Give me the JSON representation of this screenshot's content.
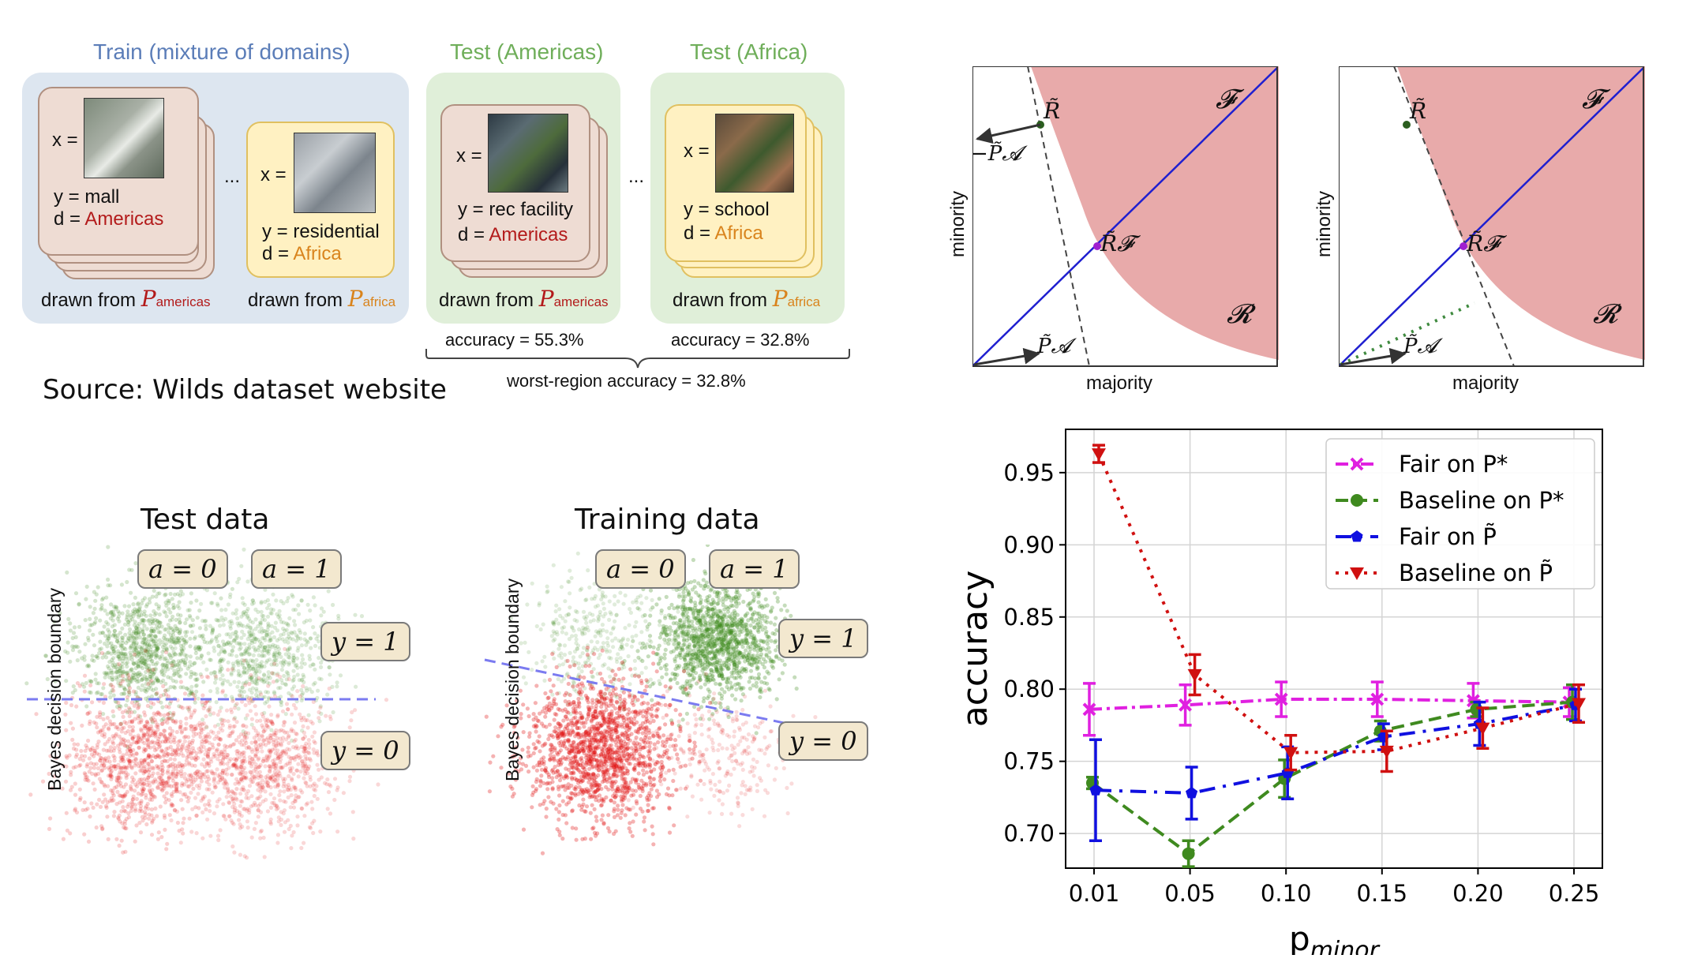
{
  "wilds": {
    "train_title": "Train (mixture of domains)",
    "test_am_title": "Test (Americas)",
    "test_af_title": "Test (Africa)",
    "x_eq": "x =",
    "ellipsis": "...",
    "mall": {
      "y": "y = mall",
      "d_prefix": "d =",
      "d_val": "Americas"
    },
    "residential": {
      "y": "y = residential",
      "d_prefix": "d =",
      "d_val": "Africa"
    },
    "rec": {
      "y": "y = rec facility",
      "d_prefix": "d =",
      "d_val": "Americas"
    },
    "school": {
      "y": "y = school",
      "d_prefix": "d =",
      "d_val": "Africa"
    },
    "drawn_from": "drawn from",
    "p_symbol": "P",
    "sub_americas": "americas",
    "sub_africa": "africa",
    "acc_am": "accuracy = 55.3%",
    "acc_af": "accuracy = 32.8%",
    "worst": "worst-region accuracy = 32.8%",
    "source": "Source: Wilds dataset website",
    "colors": {
      "train_bg": "#dde6f0",
      "test_bg": "#e0efd9",
      "title_blue": "#5b7db8",
      "title_green": "#6fae5a"
    }
  },
  "region_plots": {
    "xlabel": "majority",
    "ylabel": "minority",
    "R_tilde": "R̃",
    "F": "𝓕",
    "R": "𝓡",
    "RF": "R̃𝓕",
    "minus_PA": "−P̃𝓐",
    "PA": "P̃𝓐",
    "colors": {
      "region": "#e8aaaa",
      "line": "#1f1fd0"
    }
  },
  "scatter_plots": {
    "left_title": "Test data",
    "right_title": "Training data",
    "boundary_label": "Bayes decision boundary",
    "a0": "a = 0",
    "a1": "a = 1",
    "y1": "y = 1",
    "y0": "y = 0",
    "colors": {
      "green": "#3f8a1f",
      "red": "#e01010",
      "boundary": "#7b7bf0"
    }
  },
  "chart_data": {
    "type": "line",
    "title": "",
    "xlabel": "p_minor",
    "ylabel": "accuracy",
    "x": [
      0.01,
      0.05,
      0.1,
      0.15,
      0.2,
      0.25
    ],
    "x_ticks": [
      "0.01",
      "0.05",
      "0.10",
      "0.15",
      "0.20",
      "0.25"
    ],
    "y_ticks": [
      "0.70",
      "0.75",
      "0.80",
      "0.85",
      "0.90",
      "0.95"
    ],
    "ylim": [
      0.676,
      0.98
    ],
    "grid": true,
    "legend_position": "top-right",
    "series": [
      {
        "name": "Fair on P*",
        "color": "#e020e0",
        "marker": "x",
        "dash": "dashdot",
        "values": [
          0.786,
          0.789,
          0.793,
          0.793,
          0.792,
          0.791
        ],
        "err": [
          0.018,
          0.014,
          0.012,
          0.012,
          0.012,
          0.01
        ]
      },
      {
        "name": "Baseline on P*",
        "color": "#3f8a1f",
        "marker": "o",
        "dash": "dash",
        "values": [
          0.735,
          0.686,
          0.738,
          0.771,
          0.786,
          0.791
        ],
        "err": [
          0.004,
          0.009,
          0.013,
          0.007,
          0.005,
          0.012
        ]
      },
      {
        "name": "Fair on P̃",
        "color": "#1010e0",
        "marker": "p",
        "dash": "dashdotlong",
        "values": [
          0.73,
          0.728,
          0.742,
          0.767,
          0.776,
          0.789
        ],
        "err": [
          0.035,
          0.018,
          0.018,
          0.009,
          0.015,
          0.011
        ]
      },
      {
        "name": "Baseline on P̃",
        "color": "#d01010",
        "marker": "v",
        "dash": "dot",
        "values": [
          0.963,
          0.81,
          0.756,
          0.757,
          0.773,
          0.79
        ],
        "err": [
          0.006,
          0.014,
          0.012,
          0.014,
          0.014,
          0.013
        ]
      }
    ]
  }
}
